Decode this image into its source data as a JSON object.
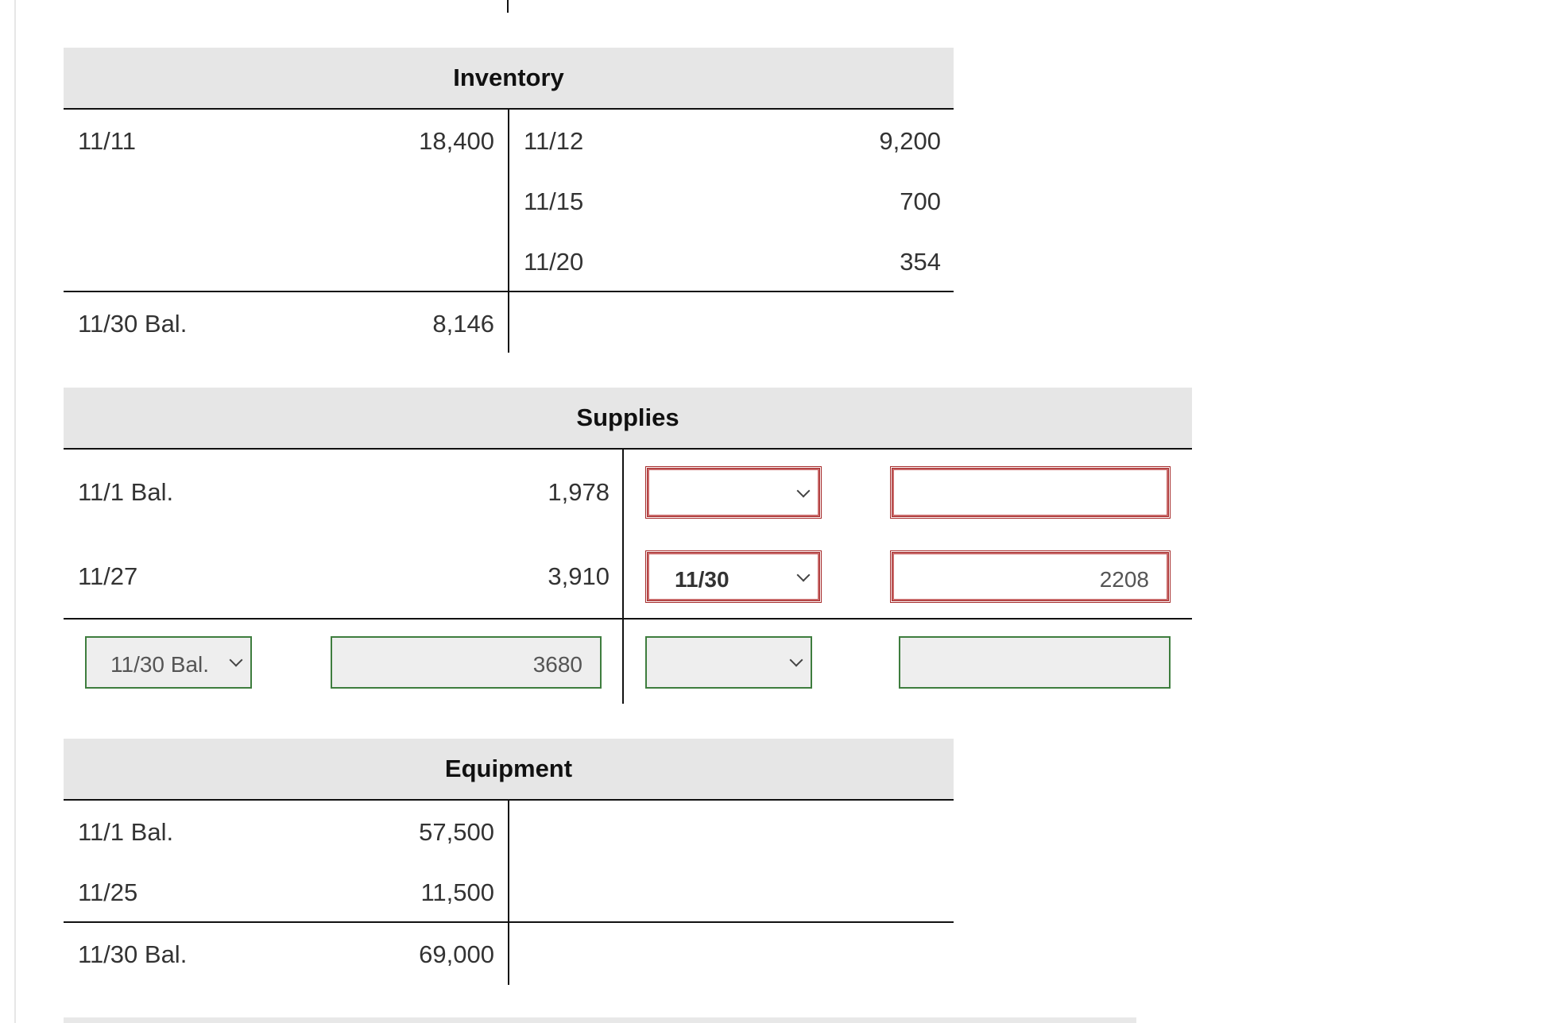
{
  "inventory": {
    "title": "Inventory",
    "debits": [
      {
        "date": "11/11",
        "amount": "18,400"
      }
    ],
    "credits": [
      {
        "date": "11/12",
        "amount": "9,200"
      },
      {
        "date": "11/15",
        "amount": "700"
      },
      {
        "date": "11/20",
        "amount": "354"
      }
    ],
    "balance": {
      "date": "11/30 Bal.",
      "amount": "8,146"
    }
  },
  "supplies": {
    "title": "Supplies",
    "debits": [
      {
        "date": "11/1 Bal.",
        "amount": "1,978"
      },
      {
        "date": "11/27",
        "amount": "3,910"
      }
    ],
    "credit_inputs": [
      {
        "date_value": "",
        "amount_value": "",
        "state": "incorrect"
      },
      {
        "date_value": "11/30",
        "amount_value": "2208",
        "state": "incorrect"
      }
    ],
    "balance_inputs": {
      "debit_date_value": "11/30 Bal.",
      "debit_amount_value": "3680",
      "credit_date_value": "",
      "credit_amount_value": "",
      "state": "correct"
    }
  },
  "equipment": {
    "title": "Equipment",
    "debits": [
      {
        "date": "11/1 Bal.",
        "amount": "57,500"
      },
      {
        "date": "11/25",
        "amount": "11,500"
      }
    ],
    "balance": {
      "date": "11/30 Bal.",
      "amount": "69,000"
    }
  },
  "colors": {
    "header_bg": "#e6e6e6",
    "error_border": "#a52a2a",
    "correct_border": "#3e7d3e"
  }
}
